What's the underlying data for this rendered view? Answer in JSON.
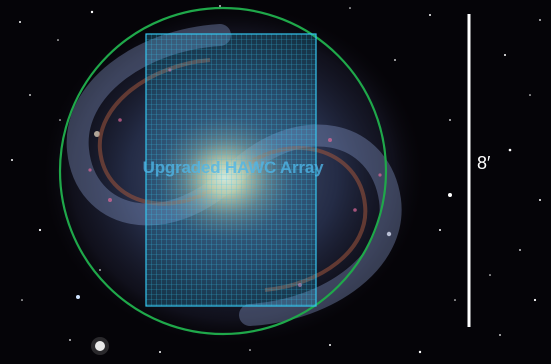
{
  "overlay": {
    "array_label": "Upgraded HAWC Array",
    "scale_label": "8′",
    "colors": {
      "field_circle": "#1fa84a",
      "array_grid": "#35c6ef",
      "scale_bar": "#ffffff"
    }
  }
}
